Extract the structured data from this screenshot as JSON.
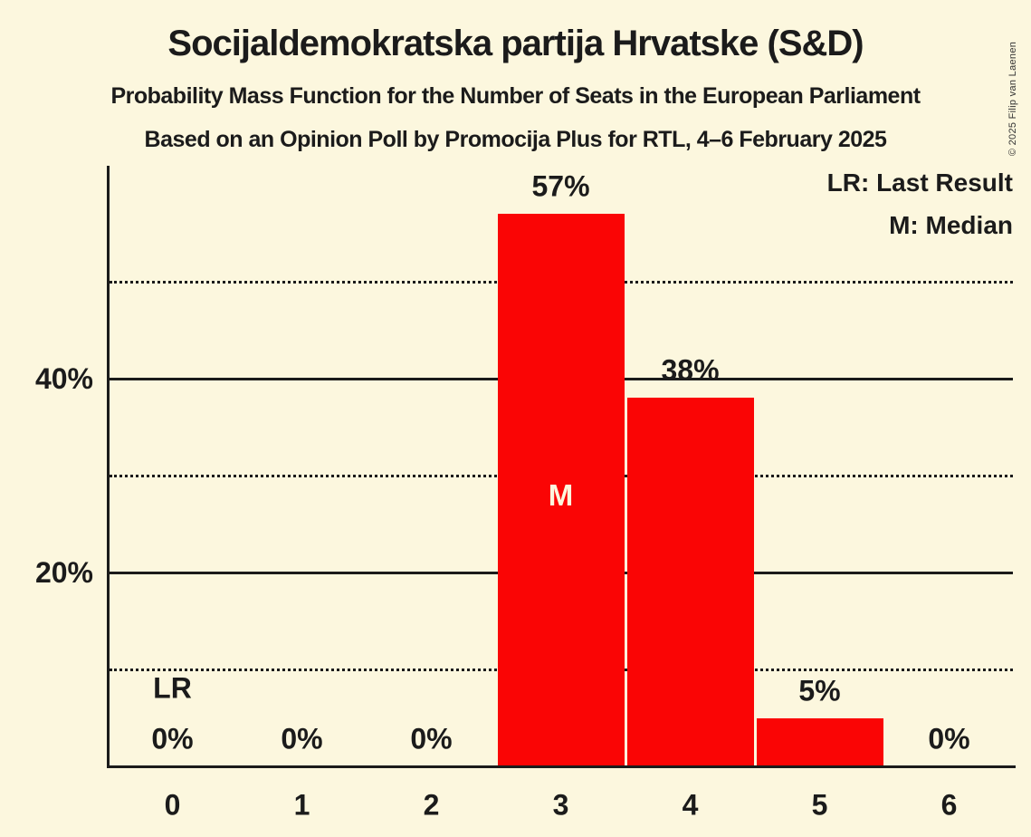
{
  "title": "Socijaldemokratska partija Hrvatske (S&D)",
  "subtitle_line1": "Probability Mass Function for the Number of Seats in the European Parliament",
  "subtitle_line2": "Based on an Opinion Poll by Promocija Plus for RTL, 4–6 February 2025",
  "copyright": "© 2025 Filip van Laenen",
  "legend": {
    "last_result": "LR: Last Result",
    "median": "M: Median"
  },
  "colors": {
    "background": "#FCF7DE",
    "bar": "#FA0505",
    "text": "#1B1B1B",
    "median_label_text": "#FCF7DE"
  },
  "chart_data": {
    "type": "bar",
    "title": "Probability Mass Function for the Number of Seats in the European Parliament",
    "xlabel": "",
    "ylabel": "",
    "categories": [
      "0",
      "1",
      "2",
      "3",
      "4",
      "5",
      "6"
    ],
    "values": [
      0,
      0,
      0,
      57,
      38,
      5,
      0
    ],
    "value_labels": [
      "0%",
      "0%",
      "0%",
      "57%",
      "38%",
      "5%",
      "0%"
    ],
    "y_ticks": [
      {
        "value": 20,
        "label": "20%"
      },
      {
        "value": 40,
        "label": "40%"
      }
    ],
    "solid_gridlines": [
      20,
      40
    ],
    "dotted_gridlines": [
      10,
      30,
      50
    ],
    "ylim": [
      0,
      62
    ],
    "grid": true,
    "legend_position": "top-right",
    "last_result": {
      "category": "0",
      "marker": "LR"
    },
    "median": {
      "category": "3",
      "marker": "M"
    }
  }
}
